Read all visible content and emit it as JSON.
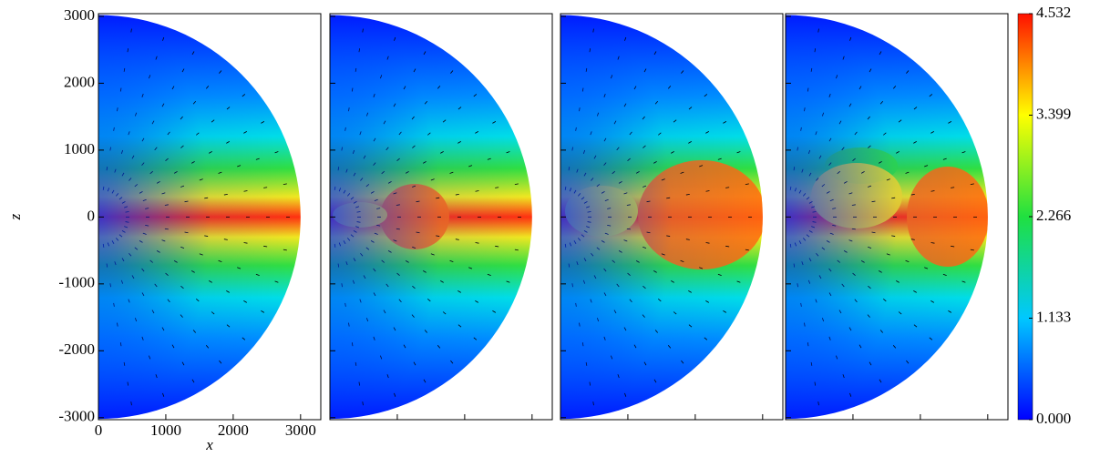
{
  "chart_data": {
    "type": "heatmap",
    "xlabel": "x",
    "ylabel": "z",
    "xlim": [
      0,
      3300
    ],
    "ylim": [
      -3030,
      3040
    ],
    "xticks": [
      0,
      1000,
      2000,
      3000
    ],
    "yticks": [
      3000,
      2000,
      1000,
      0,
      -1000,
      -2000,
      -3000
    ],
    "clim": [
      0,
      4.532
    ],
    "cticks": [
      {
        "value": 0,
        "label": "0.000"
      },
      1.133,
      2.266,
      3.399,
      4.532
    ]
  }
}
